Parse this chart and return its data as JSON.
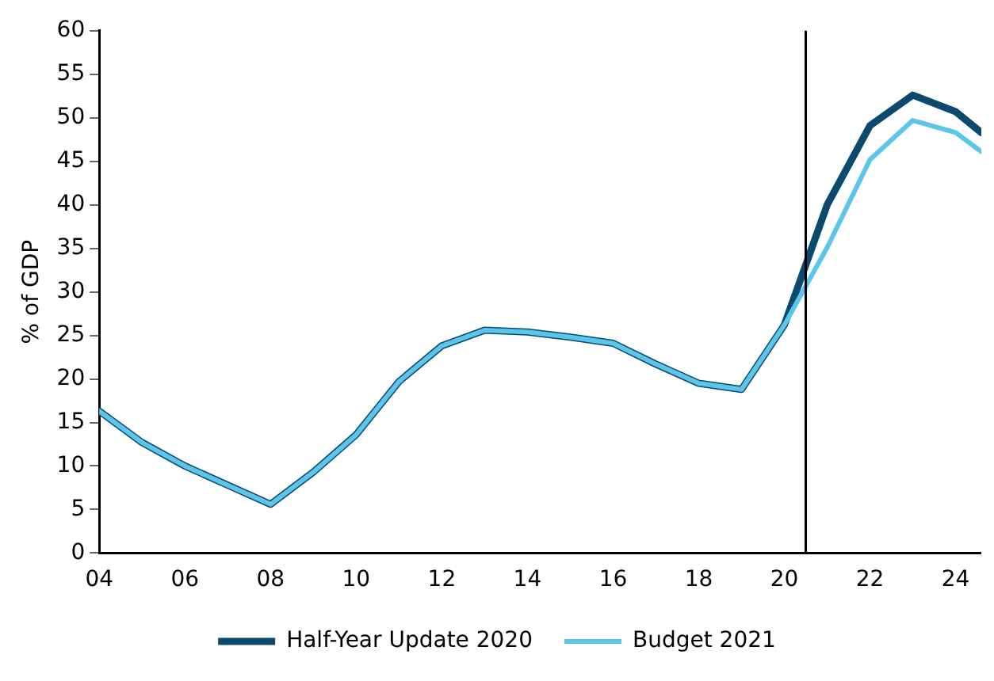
{
  "chart_data": {
    "type": "line",
    "ylabel": "% of GDP",
    "x": [
      4,
      5,
      6,
      7,
      8,
      9,
      10,
      11,
      12,
      13,
      14,
      15,
      16,
      17,
      18,
      19,
      20,
      21,
      22,
      23,
      24,
      24.6
    ],
    "series": [
      {
        "name": "Half-Year Update 2020",
        "color": "#0b4a6e",
        "values": [
          16.3,
          12.7,
          10.0,
          7.8,
          5.6,
          9.3,
          13.6,
          19.7,
          23.8,
          25.6,
          25.4,
          24.8,
          24.1,
          21.7,
          19.5,
          18.8,
          26.2,
          40.0,
          49.1,
          52.6,
          50.7,
          48.3
        ]
      },
      {
        "name": "Budget 2021",
        "color": "#5bc5ea",
        "values": [
          16.3,
          12.7,
          10.0,
          7.8,
          5.6,
          9.3,
          13.6,
          19.7,
          23.8,
          25.6,
          25.4,
          24.8,
          24.1,
          21.7,
          19.5,
          18.8,
          26.2,
          35.1,
          45.2,
          49.7,
          48.3,
          46.1
        ]
      }
    ],
    "xlim": [
      4,
      24.6
    ],
    "xticks": [
      {
        "value": 4,
        "label": "04"
      },
      {
        "value": 6,
        "label": "06"
      },
      {
        "value": 8,
        "label": "08"
      },
      10,
      12,
      14,
      16,
      18,
      20,
      22,
      24
    ],
    "ylim": [
      0,
      60
    ],
    "yticks": [
      0,
      5,
      10,
      15,
      20,
      25,
      30,
      35,
      40,
      45,
      50,
      55,
      60
    ],
    "ref_lines": [
      {
        "axis": "x",
        "value": 20.5,
        "color": "#000000"
      }
    ],
    "grid": false,
    "legend": "bottom",
    "marker": "none",
    "line_style": "solid"
  }
}
